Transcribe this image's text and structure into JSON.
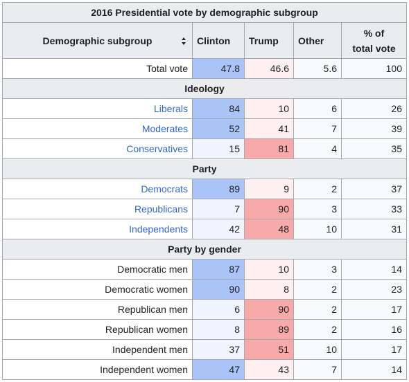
{
  "table": {
    "title": "2016 Presidential vote by demographic subgroup",
    "headers": {
      "subgroup": "Demographic subgroup",
      "clinton": "Clinton",
      "trump": "Trump",
      "other": "Other",
      "pct_line1": "% of",
      "pct_line2": "total vote"
    },
    "colors": {
      "clinton_strong": "#aac4f8",
      "clinton_weak": "#f0f4fe",
      "trump_strong": "#f8aaaa",
      "trump_weak": "#fef0f0",
      "other": "#ffff00",
      "link": "#3366cc",
      "header_bg": "#eaecf0"
    },
    "total": {
      "label": "Total vote",
      "clinton": "47.8",
      "trump": "46.6",
      "other": "5.6",
      "pct": "100"
    },
    "sections": [
      {
        "title": "Ideology",
        "rows": [
          {
            "label": "Liberals",
            "clinton": "84",
            "trump": "10",
            "other": "6",
            "pct": "26",
            "link": true
          },
          {
            "label": "Moderates",
            "clinton": "52",
            "trump": "41",
            "other": "7",
            "pct": "39",
            "link": true
          },
          {
            "label": "Conservatives",
            "clinton": "15",
            "trump": "81",
            "other": "4",
            "pct": "35",
            "link": true
          }
        ]
      },
      {
        "title": "Party",
        "rows": [
          {
            "label": "Democrats",
            "clinton": "89",
            "trump": "9",
            "other": "2",
            "pct": "37",
            "link": true
          },
          {
            "label": "Republicans",
            "clinton": "7",
            "trump": "90",
            "other": "3",
            "pct": "33",
            "link": true
          },
          {
            "label": "Independents",
            "clinton": "42",
            "trump": "48",
            "other": "10",
            "pct": "31",
            "link": true
          }
        ]
      },
      {
        "title": "Party by gender",
        "rows": [
          {
            "label": "Democratic men",
            "clinton": "87",
            "trump": "10",
            "other": "3",
            "pct": "14",
            "link": false
          },
          {
            "label": "Democratic women",
            "clinton": "90",
            "trump": "8",
            "other": "2",
            "pct": "23",
            "link": false
          },
          {
            "label": "Republican men",
            "clinton": "6",
            "trump": "90",
            "other": "2",
            "pct": "17",
            "link": false
          },
          {
            "label": "Republican women",
            "clinton": "8",
            "trump": "89",
            "other": "2",
            "pct": "16",
            "link": false
          },
          {
            "label": "Independent men",
            "clinton": "37",
            "trump": "51",
            "other": "10",
            "pct": "17",
            "link": false
          },
          {
            "label": "Independent women",
            "clinton": "47",
            "trump": "43",
            "other": "7",
            "pct": "14",
            "link": false
          }
        ]
      }
    ]
  }
}
